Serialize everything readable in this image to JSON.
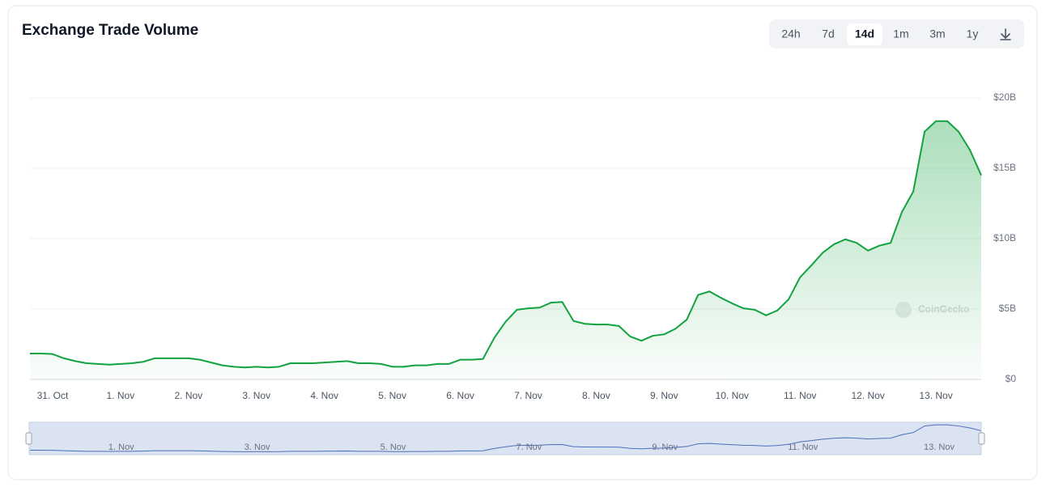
{
  "chart_data": {
    "type": "line",
    "title": "Exchange Trade Volume",
    "categories": [
      null,
      null,
      "31. Oct",
      null,
      null,
      null,
      null,
      null,
      "1. Nov",
      null,
      null,
      null,
      null,
      null,
      "2. Nov",
      null,
      null,
      null,
      null,
      null,
      "3. Nov",
      null,
      null,
      null,
      null,
      null,
      "4. Nov",
      null,
      null,
      null,
      null,
      null,
      "5. Nov",
      null,
      null,
      null,
      null,
      null,
      "6. Nov",
      null,
      null,
      null,
      null,
      null,
      "7. Nov",
      null,
      null,
      null,
      null,
      null,
      "8. Nov",
      null,
      null,
      null,
      null,
      null,
      "9. Nov",
      null,
      null,
      null,
      null,
      null,
      "10. Nov",
      null,
      null,
      null,
      null,
      null,
      "11. Nov",
      null,
      null,
      null,
      null,
      null,
      "12. Nov",
      null,
      null,
      null,
      null,
      null,
      "13. Nov",
      null,
      null,
      null,
      null
    ],
    "series": [
      {
        "name": "Volume",
        "color": "#12a33f",
        "values": [
          1.84,
          1.84,
          1.8,
          1.5,
          1.3,
          1.15,
          1.1,
          1.05,
          1.1,
          1.15,
          1.25,
          1.5,
          1.5,
          1.5,
          1.5,
          1.4,
          1.2,
          1.0,
          0.9,
          0.85,
          0.9,
          0.85,
          0.9,
          1.15,
          1.15,
          1.15,
          1.2,
          1.25,
          1.3,
          1.15,
          1.15,
          1.1,
          0.9,
          0.9,
          1.0,
          1.0,
          1.1,
          1.1,
          1.4,
          1.4,
          1.45,
          2.95,
          4.1,
          4.95,
          5.05,
          5.1,
          5.45,
          5.5,
          4.15,
          3.95,
          3.9,
          3.9,
          3.8,
          3.05,
          2.75,
          3.1,
          3.2,
          3.6,
          4.25,
          6.0,
          6.25,
          5.8,
          5.4,
          5.05,
          4.95,
          4.55,
          4.9,
          5.7,
          7.25,
          8.1,
          9.0,
          9.6,
          9.95,
          9.7,
          9.15,
          9.5,
          9.7,
          11.9,
          13.35,
          17.6,
          18.35,
          18.35,
          17.6,
          16.3,
          14.5
        ]
      }
    ],
    "ylim": [
      0,
      20
    ],
    "yticks": [
      {
        "value": 0,
        "label": "$0"
      },
      {
        "value": 5,
        "label": "$5B"
      },
      {
        "value": 10,
        "label": "$10B"
      },
      {
        "value": 15,
        "label": "$15B"
      },
      {
        "value": 20,
        "label": "$20B"
      }
    ],
    "grid": true,
    "watermark": "CoinGecko"
  },
  "controls": {
    "ranges": [
      "24h",
      "7d",
      "14d",
      "1m",
      "3m",
      "1y"
    ],
    "selected": 2
  }
}
